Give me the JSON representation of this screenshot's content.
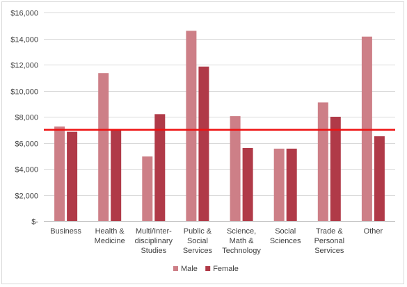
{
  "chart_data": {
    "type": "bar",
    "title": "",
    "xlabel": "",
    "ylabel": "",
    "ylim": [
      0,
      16000
    ],
    "yticks": [
      0,
      2000,
      4000,
      6000,
      8000,
      10000,
      12000,
      14000,
      16000
    ],
    "ytick_labels": [
      "$-",
      "$2,000",
      "$4,000",
      "$6,000",
      "$8,000",
      "$10,000",
      "$12,000",
      "$14,000",
      "$16,000"
    ],
    "grid": true,
    "categories": [
      [
        "Business"
      ],
      [
        "Health &",
        "Medicine"
      ],
      [
        "Multi/Inter-",
        "disciplinary",
        "Studies"
      ],
      [
        "Public &",
        "Social",
        "Services"
      ],
      [
        "Science,",
        "Math &",
        "Technology"
      ],
      [
        "Social",
        "Sciences"
      ],
      [
        "Trade &",
        "Personal",
        "Services"
      ],
      [
        "Other"
      ]
    ],
    "series": [
      {
        "name": "Male",
        "color": "#cd7f87",
        "values": [
          7250,
          11350,
          4950,
          14600,
          8050,
          5550,
          9100,
          14150
        ]
      },
      {
        "name": "Female",
        "color": "#b03a48",
        "values": [
          6850,
          7050,
          8200,
          11850,
          5600,
          5550,
          8000,
          6500
        ]
      }
    ],
    "reference_line": {
      "value": 7000,
      "color": "#ee1111"
    },
    "legend_position": "bottom"
  }
}
